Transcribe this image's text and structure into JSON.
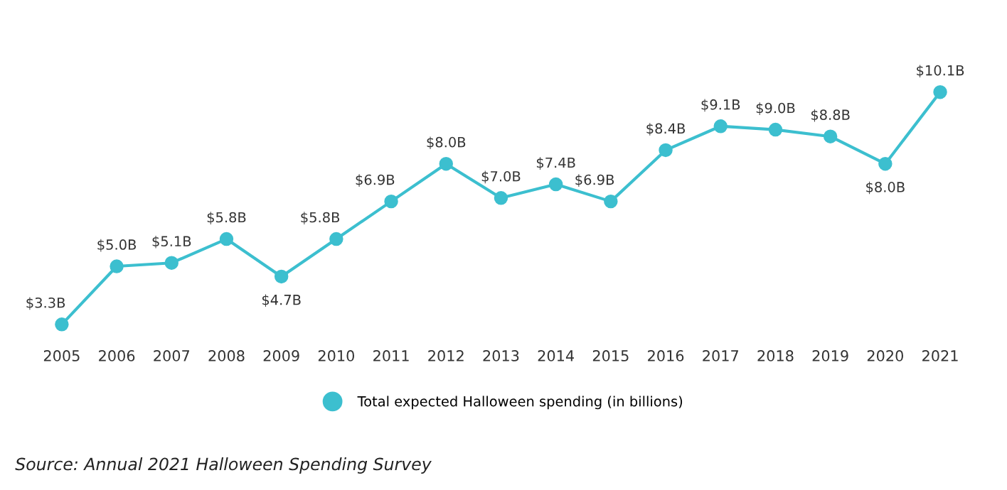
{
  "chart_data": {
    "type": "line",
    "categories": [
      "2005",
      "2006",
      "2007",
      "2008",
      "2009",
      "2010",
      "2011",
      "2012",
      "2013",
      "2014",
      "2015",
      "2016",
      "2017",
      "2018",
      "2019",
      "2020",
      "2021"
    ],
    "series": [
      {
        "name": "Total expected Halloween spending (in billions)",
        "color": "#3cbfcf",
        "values": [
          3.3,
          5.0,
          5.1,
          5.8,
          4.7,
          5.8,
          6.9,
          8.0,
          7.0,
          7.4,
          6.9,
          8.4,
          9.1,
          9.0,
          8.8,
          8.0,
          10.1
        ],
        "value_labels": [
          "$3.3B",
          "$5.0B",
          "$5.1B",
          "$5.8B",
          "$4.7B",
          "$5.8B",
          "$6.9B",
          "$8.0B",
          "$7.0B",
          "$7.4B",
          "$6.9B",
          "$8.4B",
          "$9.1B",
          "$9.0B",
          "$8.8B",
          "$8.0B",
          "$10.1B"
        ]
      }
    ],
    "marker": "circle",
    "legend": "bottom",
    "grid": false,
    "tick_labels": "x",
    "annotations": [
      "Source: Annual 2021 Halloween Spending Survey"
    ]
  }
}
